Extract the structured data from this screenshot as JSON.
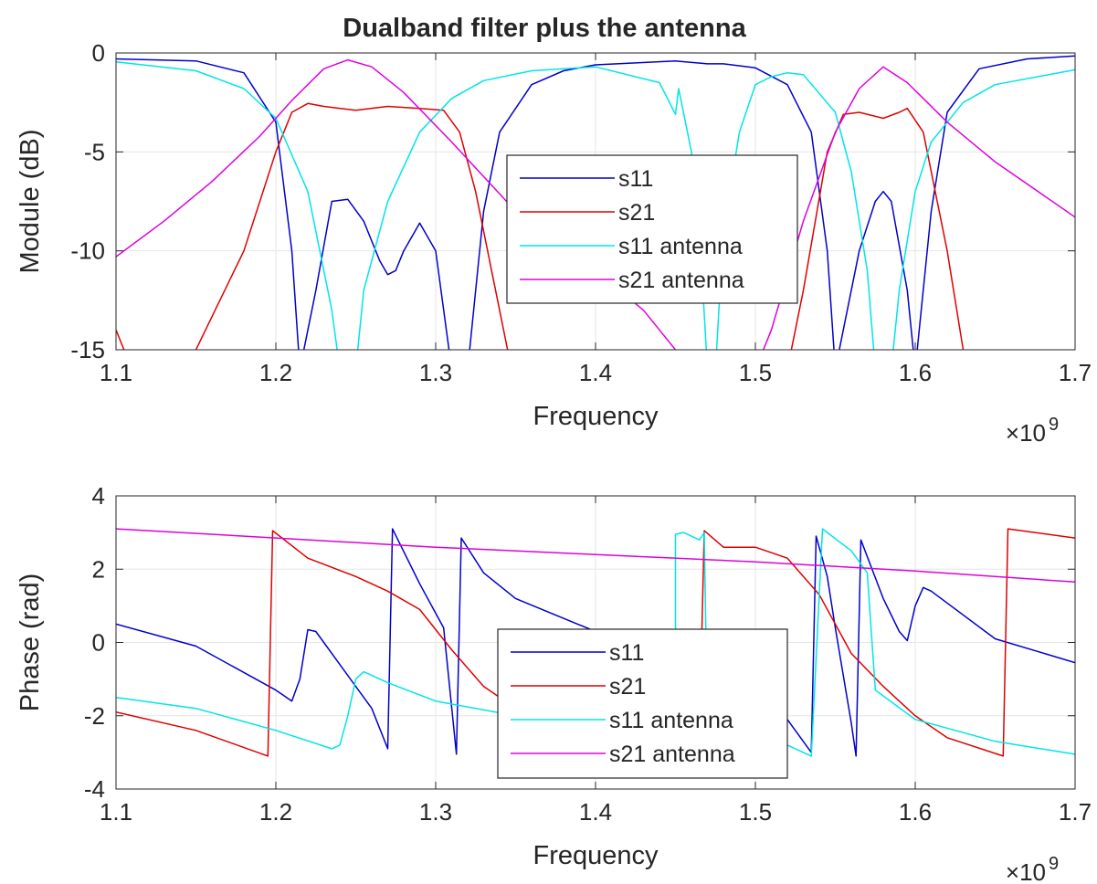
{
  "chart_data": [
    {
      "type": "line",
      "title": "Dualband filter plus the antenna",
      "xlabel": "Frequency",
      "ylabel": "Module (dB)",
      "x_exponent_label": "×10",
      "x_exponent": "9",
      "xlim": [
        1.1,
        1.7
      ],
      "ylim": [
        -15,
        0
      ],
      "xticks": [
        "1.1",
        "1.2",
        "1.3",
        "1.4",
        "1.5",
        "1.6",
        "1.7"
      ],
      "yticks": [
        "0",
        "-5",
        "-10",
        "-15"
      ],
      "grid": true,
      "legend_position": "center",
      "series": [
        {
          "name": "s11",
          "color": "#0000cc",
          "points": [
            [
              1.1,
              -0.3
            ],
            [
              1.15,
              -0.4
            ],
            [
              1.18,
              -1.0
            ],
            [
              1.2,
              -3.5
            ],
            [
              1.21,
              -10
            ],
            [
              1.215,
              -16
            ],
            [
              1.225,
              -12
            ],
            [
              1.235,
              -7.5
            ],
            [
              1.245,
              -7.4
            ],
            [
              1.255,
              -8.5
            ],
            [
              1.265,
              -10.5
            ],
            [
              1.27,
              -11.2
            ],
            [
              1.275,
              -11
            ],
            [
              1.28,
              -10
            ],
            [
              1.29,
              -8.6
            ],
            [
              1.3,
              -10
            ],
            [
              1.31,
              -16
            ],
            [
              1.32,
              -16
            ],
            [
              1.33,
              -8
            ],
            [
              1.34,
              -4
            ],
            [
              1.36,
              -1.6
            ],
            [
              1.38,
              -0.9
            ],
            [
              1.4,
              -0.6
            ],
            [
              1.45,
              -0.4
            ],
            [
              1.47,
              -0.55
            ],
            [
              1.48,
              -0.55
            ],
            [
              1.5,
              -0.75
            ],
            [
              1.52,
              -1.6
            ],
            [
              1.535,
              -4
            ],
            [
              1.545,
              -10
            ],
            [
              1.55,
              -16
            ],
            [
              1.565,
              -10
            ],
            [
              1.575,
              -7.5
            ],
            [
              1.58,
              -7
            ],
            [
              1.585,
              -7.5
            ],
            [
              1.595,
              -12
            ],
            [
              1.6,
              -16
            ],
            [
              1.61,
              -8
            ],
            [
              1.62,
              -3
            ],
            [
              1.64,
              -0.8
            ],
            [
              1.67,
              -0.3
            ],
            [
              1.7,
              -0.15
            ]
          ]
        },
        {
          "name": "s21",
          "color": "#dd0000",
          "points": [
            [
              1.1,
              -14
            ],
            [
              1.11,
              -16
            ],
            [
              1.15,
              -15
            ],
            [
              1.18,
              -10
            ],
            [
              1.2,
              -5
            ],
            [
              1.21,
              -3
            ],
            [
              1.22,
              -2.55
            ],
            [
              1.23,
              -2.7
            ],
            [
              1.25,
              -2.9
            ],
            [
              1.27,
              -2.7
            ],
            [
              1.29,
              -2.8
            ],
            [
              1.305,
              -2.9
            ],
            [
              1.315,
              -4
            ],
            [
              1.325,
              -7
            ],
            [
              1.335,
              -11
            ],
            [
              1.345,
              -15
            ],
            [
              1.35,
              -16
            ],
            [
              1.5,
              -16
            ],
            [
              1.52,
              -16
            ],
            [
              1.53,
              -12
            ],
            [
              1.545,
              -5
            ],
            [
              1.555,
              -3.1
            ],
            [
              1.565,
              -3
            ],
            [
              1.58,
              -3.3
            ],
            [
              1.59,
              -3.0
            ],
            [
              1.595,
              -2.8
            ],
            [
              1.605,
              -4
            ],
            [
              1.62,
              -10
            ],
            [
              1.63,
              -15
            ],
            [
              1.64,
              -16
            ]
          ]
        },
        {
          "name": "s11 antenna",
          "color": "#00e5e5",
          "points": [
            [
              1.1,
              -0.45
            ],
            [
              1.15,
              -0.9
            ],
            [
              1.18,
              -1.8
            ],
            [
              1.2,
              -3.3
            ],
            [
              1.22,
              -7
            ],
            [
              1.235,
              -13
            ],
            [
              1.24,
              -16
            ],
            [
              1.25,
              -16
            ],
            [
              1.255,
              -12
            ],
            [
              1.27,
              -7.5
            ],
            [
              1.29,
              -4
            ],
            [
              1.31,
              -2.3
            ],
            [
              1.33,
              -1.4
            ],
            [
              1.36,
              -0.9
            ],
            [
              1.4,
              -0.7
            ],
            [
              1.44,
              -1.5
            ],
            [
              1.45,
              -3.1
            ],
            [
              1.452,
              -1.8
            ],
            [
              1.46,
              -5
            ],
            [
              1.465,
              -9
            ],
            [
              1.47,
              -16
            ],
            [
              1.475,
              -16
            ],
            [
              1.48,
              -9
            ],
            [
              1.49,
              -4
            ],
            [
              1.5,
              -1.6
            ],
            [
              1.51,
              -1.2
            ],
            [
              1.52,
              -1.0
            ],
            [
              1.53,
              -1.1
            ],
            [
              1.55,
              -3
            ],
            [
              1.56,
              -6
            ],
            [
              1.57,
              -11
            ],
            [
              1.575,
              -16
            ],
            [
              1.585,
              -16
            ],
            [
              1.59,
              -12
            ],
            [
              1.6,
              -7
            ],
            [
              1.61,
              -4.5
            ],
            [
              1.63,
              -2.5
            ],
            [
              1.65,
              -1.6
            ],
            [
              1.7,
              -0.85
            ]
          ]
        },
        {
          "name": "s21 antenna",
          "color": "#dd00dd",
          "points": [
            [
              1.1,
              -10.3
            ],
            [
              1.13,
              -8.5
            ],
            [
              1.16,
              -6.5
            ],
            [
              1.19,
              -4.2
            ],
            [
              1.21,
              -2.4
            ],
            [
              1.23,
              -0.8
            ],
            [
              1.245,
              -0.35
            ],
            [
              1.26,
              -0.7
            ],
            [
              1.28,
              -2
            ],
            [
              1.31,
              -4.5
            ],
            [
              1.35,
              -8
            ],
            [
              1.4,
              -11
            ],
            [
              1.43,
              -13
            ],
            [
              1.46,
              -16
            ],
            [
              1.5,
              -16
            ],
            [
              1.51,
              -14
            ],
            [
              1.53,
              -8.5
            ],
            [
              1.55,
              -4
            ],
            [
              1.565,
              -1.8
            ],
            [
              1.58,
              -0.7
            ],
            [
              1.595,
              -1.5
            ],
            [
              1.62,
              -3.5
            ],
            [
              1.65,
              -5.5
            ],
            [
              1.7,
              -8.3
            ]
          ]
        }
      ]
    },
    {
      "type": "line",
      "title": "",
      "xlabel": "Frequency",
      "ylabel": "Phase (rad)",
      "x_exponent_label": "×10",
      "x_exponent": "9",
      "xlim": [
        1.1,
        1.7
      ],
      "ylim": [
        -4,
        4
      ],
      "xticks": [
        "1.1",
        "1.2",
        "1.3",
        "1.4",
        "1.5",
        "1.6",
        "1.7"
      ],
      "yticks": [
        "4",
        "2",
        "0",
        "-2",
        "-4"
      ],
      "grid": true,
      "legend_position": "center",
      "series": [
        {
          "name": "s11",
          "color": "#0000cc",
          "points": [
            [
              1.1,
              0.5
            ],
            [
              1.15,
              -0.1
            ],
            [
              1.2,
              -1.3
            ],
            [
              1.21,
              -1.6
            ],
            [
              1.215,
              -1.0
            ],
            [
              1.22,
              0.35
            ],
            [
              1.225,
              0.3
            ],
            [
              1.24,
              -0.6
            ],
            [
              1.26,
              -1.8
            ],
            [
              1.27,
              -2.9
            ],
            [
              1.273,
              3.1
            ],
            [
              1.29,
              1.6
            ],
            [
              1.305,
              0.4
            ],
            [
              1.313,
              -3.05
            ],
            [
              1.316,
              2.85
            ],
            [
              1.33,
              1.9
            ],
            [
              1.35,
              1.2
            ],
            [
              1.4,
              0.3
            ],
            [
              1.45,
              -0.3
            ],
            [
              1.5,
              -1.3
            ],
            [
              1.52,
              -2.1
            ],
            [
              1.535,
              -3.0
            ],
            [
              1.538,
              2.9
            ],
            [
              1.545,
              1.8
            ],
            [
              1.55,
              0.4
            ],
            [
              1.56,
              -2.2
            ],
            [
              1.563,
              -3.1
            ],
            [
              1.566,
              2.8
            ],
            [
              1.58,
              1.2
            ],
            [
              1.59,
              0.3
            ],
            [
              1.595,
              0.05
            ],
            [
              1.6,
              1.0
            ],
            [
              1.605,
              1.5
            ],
            [
              1.61,
              1.4
            ],
            [
              1.65,
              0.1
            ],
            [
              1.7,
              -0.55
            ]
          ]
        },
        {
          "name": "s21",
          "color": "#dd0000",
          "points": [
            [
              1.1,
              -1.9
            ],
            [
              1.15,
              -2.4
            ],
            [
              1.195,
              -3.1
            ],
            [
              1.198,
              3.05
            ],
            [
              1.22,
              2.3
            ],
            [
              1.25,
              1.8
            ],
            [
              1.27,
              1.4
            ],
            [
              1.29,
              0.9
            ],
            [
              1.31,
              -0.2
            ],
            [
              1.33,
              -1.2
            ],
            [
              1.35,
              -1.8
            ],
            [
              1.4,
              -2.1
            ],
            [
              1.45,
              -2.3
            ],
            [
              1.465,
              -2.5
            ],
            [
              1.468,
              3.05
            ],
            [
              1.48,
              2.6
            ],
            [
              1.5,
              2.6
            ],
            [
              1.52,
              2.3
            ],
            [
              1.54,
              1.3
            ],
            [
              1.56,
              -0.3
            ],
            [
              1.58,
              -1.2
            ],
            [
              1.6,
              -2.0
            ],
            [
              1.62,
              -2.6
            ],
            [
              1.655,
              -3.1
            ],
            [
              1.658,
              3.1
            ],
            [
              1.7,
              2.85
            ]
          ]
        },
        {
          "name": "s11 antenna",
          "color": "#00e5e5",
          "points": [
            [
              1.1,
              -1.5
            ],
            [
              1.15,
              -1.8
            ],
            [
              1.2,
              -2.4
            ],
            [
              1.235,
              -2.9
            ],
            [
              1.24,
              -2.8
            ],
            [
              1.245,
              -2.0
            ],
            [
              1.25,
              -1.0
            ],
            [
              1.255,
              -0.8
            ],
            [
              1.27,
              -1.1
            ],
            [
              1.3,
              -1.6
            ],
            [
              1.35,
              -2.0
            ],
            [
              1.4,
              -2.2
            ],
            [
              1.45,
              -2.3
            ],
            [
              1.45,
              2.95
            ],
            [
              1.455,
              3.0
            ],
            [
              1.465,
              2.8
            ],
            [
              1.468,
              3.0
            ],
            [
              1.47,
              -2.4
            ],
            [
              1.5,
              -2.5
            ],
            [
              1.52,
              -2.8
            ],
            [
              1.535,
              -3.1
            ],
            [
              1.542,
              3.1
            ],
            [
              1.56,
              2.5
            ],
            [
              1.57,
              1.9
            ],
            [
              1.575,
              -1.3
            ],
            [
              1.6,
              -2.1
            ],
            [
              1.65,
              -2.7
            ],
            [
              1.7,
              -3.05
            ]
          ]
        },
        {
          "name": "s21 antenna",
          "color": "#dd00dd",
          "points": [
            [
              1.1,
              3.1
            ],
            [
              1.2,
              2.85
            ],
            [
              1.3,
              2.6
            ],
            [
              1.4,
              2.4
            ],
            [
              1.5,
              2.2
            ],
            [
              1.6,
              1.95
            ],
            [
              1.7,
              1.65
            ]
          ]
        }
      ]
    }
  ]
}
